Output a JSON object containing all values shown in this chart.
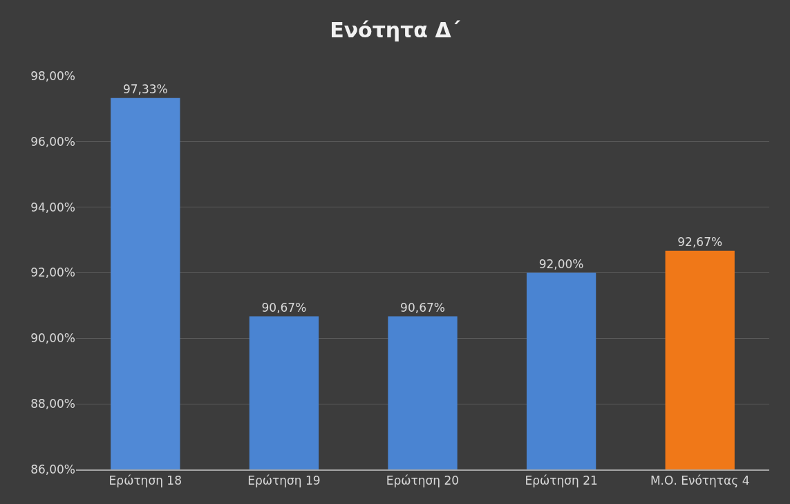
{
  "chart_data": {
    "type": "bar",
    "title": "Ενότητα Δ΄",
    "categories": [
      "Ερώτηση 18",
      "Ερώτηση 19",
      "Ερώτηση 20",
      "Ερώτηση 21",
      "Μ.Ο. Ενότητας 4"
    ],
    "values": [
      97.33,
      90.67,
      90.67,
      92.0,
      92.67
    ],
    "colors": [
      "#5089d6",
      "#4a84d2",
      "#4a84d2",
      "#4a84d2",
      "#f07818"
    ],
    "value_labels": [
      "97,33%",
      "90,67%",
      "90,67%",
      "92,00%",
      "92,67%"
    ],
    "ylim": [
      86,
      98
    ],
    "yticks": [
      {
        "value": 86,
        "label": "86,00%"
      },
      {
        "value": 88,
        "label": "88,00%"
      },
      {
        "value": 90,
        "label": "90,00%"
      },
      {
        "value": 92,
        "label": "92,00%"
      },
      {
        "value": 94,
        "label": "94,00%"
      },
      {
        "value": 96,
        "label": "96,00%"
      },
      {
        "value": 98,
        "label": "98,00%"
      }
    ],
    "grid": "y",
    "legend": false
  }
}
